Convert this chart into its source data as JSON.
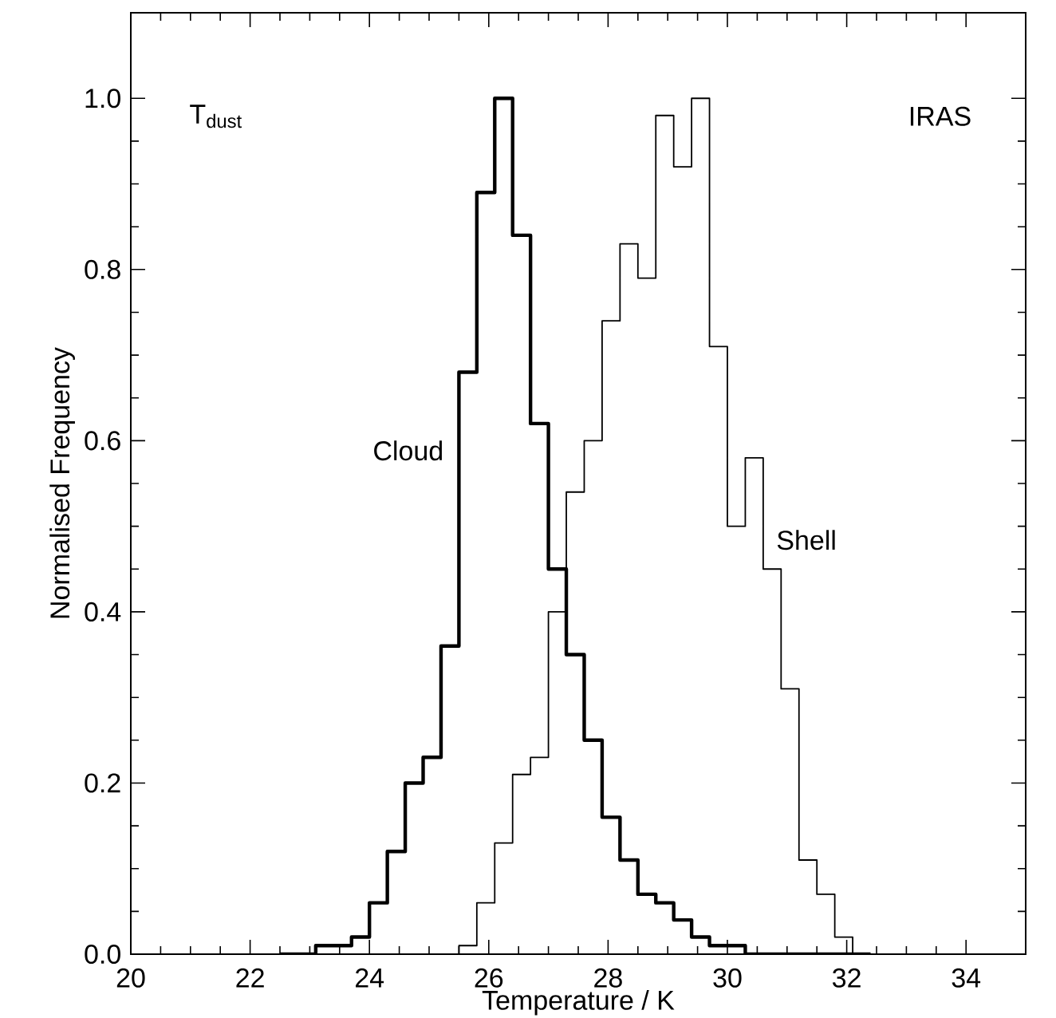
{
  "chart_data": {
    "type": "histogram",
    "xlabel": "Temperature / K",
    "ylabel": "Normalised Frequency",
    "annotations": [
      "T$_{dust}$",
      "IRAS"
    ],
    "bins": [
      22.5,
      22.8,
      23.1,
      23.4,
      23.7,
      24.0,
      24.3,
      24.6,
      24.9,
      25.2,
      25.5,
      25.8,
      26.1,
      26.4,
      26.7,
      27.0,
      27.3,
      27.6,
      27.9,
      28.2,
      28.5,
      28.8,
      29.1,
      29.4,
      29.7,
      30.0,
      30.3,
      30.6,
      30.9,
      31.2,
      31.5,
      31.8,
      32.1,
      32.4
    ],
    "series": [
      {
        "name": "Cloud",
        "color": "#000000",
        "values": [
          0.0,
          0.0,
          0.01,
          0.01,
          0.02,
          0.06,
          0.12,
          0.2,
          0.23,
          0.36,
          0.68,
          0.89,
          1.0,
          0.84,
          0.62,
          0.45,
          0.35,
          0.25,
          0.16,
          0.11,
          0.07,
          0.06,
          0.04,
          0.02,
          0.01,
          0.01,
          0.0,
          0.0,
          0.0,
          0.0,
          0.0,
          0.0,
          0.0
        ]
      },
      {
        "name": "Shell",
        "color": "#000000",
        "bins": [
          25.5,
          25.8,
          26.1,
          26.4,
          26.7,
          27.0,
          27.3,
          27.6,
          27.9,
          28.2,
          28.5,
          28.8,
          29.1,
          29.4,
          29.7,
          30.0,
          30.3,
          30.6,
          30.9,
          31.2,
          31.5,
          31.8,
          32.1,
          32.4
        ],
        "values": [
          0.01,
          0.06,
          0.13,
          0.21,
          0.23,
          0.4,
          0.54,
          0.6,
          0.74,
          0.83,
          0.79,
          0.98,
          0.92,
          1.0,
          0.71,
          0.5,
          0.58,
          0.45,
          0.31,
          0.11,
          0.07,
          0.02,
          0.0
        ]
      }
    ],
    "xlim": [
      20,
      35
    ],
    "ylim": [
      0,
      1.1
    ],
    "xticks": [
      20,
      22,
      24,
      26,
      28,
      30,
      32,
      34
    ],
    "yticks": [
      {
        "value": 0,
        "label": "0.0"
      },
      {
        "value": 0.2,
        "label": "0.2"
      },
      {
        "value": 0.4,
        "label": "0.4"
      },
      {
        "value": 0.6,
        "label": "0.6"
      },
      {
        "value": 0.8,
        "label": "0.8"
      },
      {
        "value": 1.0,
        "label": "1.0"
      }
    ]
  }
}
